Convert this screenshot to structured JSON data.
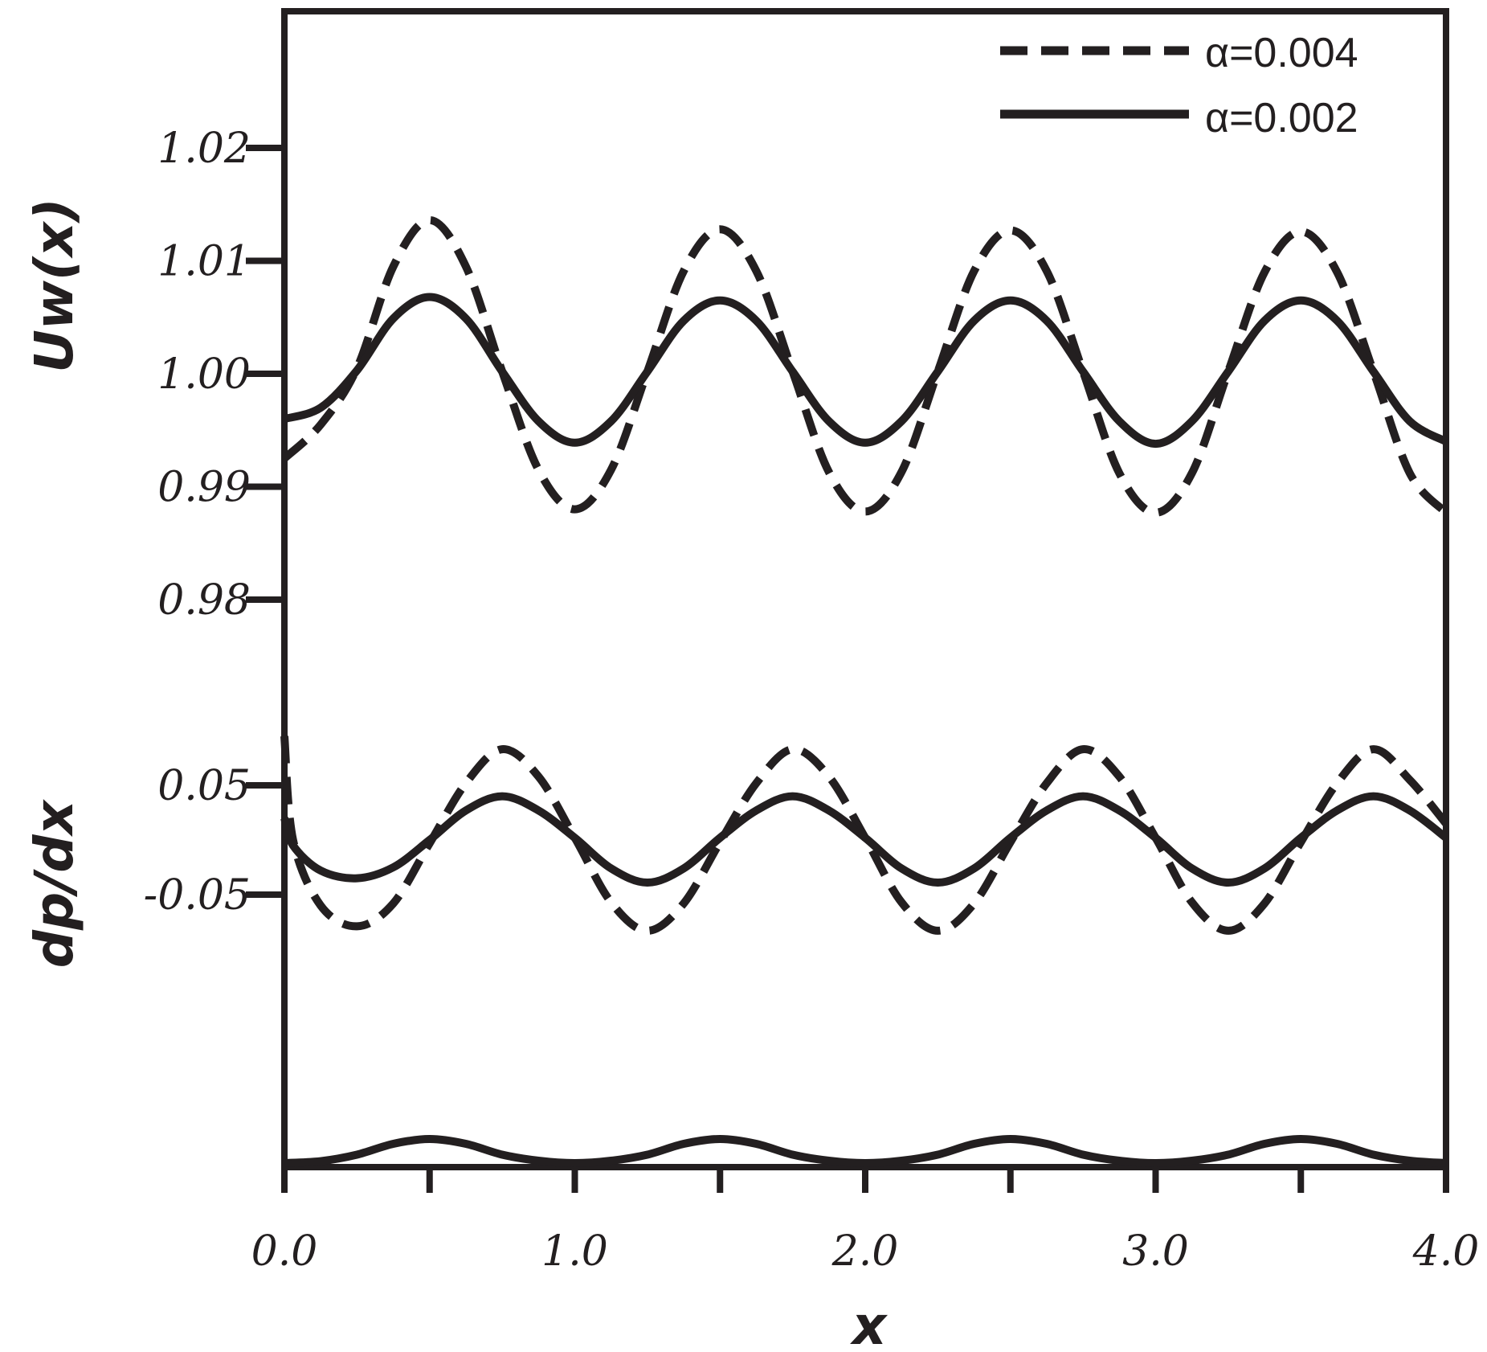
{
  "chart_data": {
    "type": "line",
    "xlabel": "x",
    "xlim": [
      0,
      4
    ],
    "x_ticks": [
      "0.0",
      "1.0",
      "2.0",
      "3.0",
      "4.0"
    ],
    "x_tick_values": [
      0,
      1,
      2,
      3,
      4
    ],
    "x_minor_ticks": [
      0.5,
      1.5,
      2.5,
      3.5
    ],
    "grid": false,
    "legend_position": "top-right",
    "legend": [
      {
        "label": "α=0.004",
        "style": "dashed"
      },
      {
        "label": "α=0.002",
        "style": "solid"
      }
    ],
    "panels": [
      {
        "ylabel": "Uw(x)",
        "y_ticks": [
          "1.02",
          "1.01",
          "1.00",
          "0.99",
          "0.98"
        ],
        "y_tick_values": [
          1.02,
          1.01,
          1.0,
          0.99,
          0.98
        ],
        "series": [
          {
            "legend": "α=0.004",
            "style": "dashed",
            "x": [
              0,
              0.125,
              0.25,
              0.375,
              0.5,
              0.625,
              0.75,
              0.875,
              1.0,
              1.125,
              1.25,
              1.375,
              1.5,
              1.625,
              1.75,
              1.875,
              2.0,
              2.125,
              2.25,
              2.375,
              2.5,
              2.625,
              2.75,
              2.875,
              3.0,
              3.125,
              3.25,
              3.375,
              3.5,
              3.625,
              3.75,
              3.875,
              4.0
            ],
            "y": [
              0.9925,
              0.9955,
              1.0005,
              1.0095,
              1.0136,
              1.0095,
              1.0002,
              0.9915,
              0.988,
              0.9915,
              1.0002,
              1.0091,
              1.0128,
              1.0091,
              1.0002,
              0.9913,
              0.9878,
              0.9913,
              1.0002,
              1.0091,
              1.0127,
              1.0091,
              1.0002,
              0.9912,
              0.9877,
              0.9912,
              1.0002,
              1.009,
              1.0126,
              1.009,
              1.0002,
              0.9912,
              0.9877
            ]
          },
          {
            "legend": "α=0.002",
            "style": "solid",
            "x": [
              0,
              0.125,
              0.25,
              0.375,
              0.5,
              0.625,
              0.75,
              0.875,
              1.0,
              1.125,
              1.25,
              1.375,
              1.5,
              1.625,
              1.75,
              1.875,
              2.0,
              2.125,
              2.25,
              2.375,
              2.5,
              2.625,
              2.75,
              2.875,
              3.0,
              3.125,
              3.25,
              3.375,
              3.5,
              3.625,
              3.75,
              3.875,
              4.0
            ],
            "y": [
              0.996,
              0.997,
              1.0003,
              1.0049,
              1.0068,
              1.0049,
              1.0002,
              0.9958,
              0.9939,
              0.9958,
              1.0002,
              1.0047,
              1.0065,
              1.0047,
              1.0002,
              0.9958,
              0.9939,
              0.9958,
              1.0002,
              1.0047,
              1.0065,
              1.0047,
              1.0002,
              0.9958,
              0.9938,
              0.9958,
              1.0002,
              1.0047,
              1.0065,
              1.0047,
              1.0002,
              0.9958,
              0.994
            ]
          }
        ]
      },
      {
        "ylabel": "dp/dx",
        "y_ticks": [
          "0.05",
          "-0.05"
        ],
        "y_tick_values": [
          0.05,
          -0.05
        ],
        "series": [
          {
            "legend": "α=0.004",
            "style": "dashed",
            "x": [
              0,
              0.03,
              0.125,
              0.25,
              0.375,
              0.5,
              0.625,
              0.75,
              0.875,
              1.0,
              1.125,
              1.25,
              1.375,
              1.5,
              1.625,
              1.75,
              1.875,
              2.0,
              2.125,
              2.25,
              2.375,
              2.5,
              2.625,
              2.75,
              2.875,
              3.0,
              3.125,
              3.25,
              3.375,
              3.5,
              3.625,
              3.75,
              3.875,
              4.0
            ],
            "y": [
              0.095,
              0.0,
              -0.06,
              -0.079,
              -0.058,
              -0.003,
              0.052,
              0.083,
              0.058,
              0.002,
              -0.057,
              -0.083,
              -0.058,
              -0.002,
              0.052,
              0.083,
              0.058,
              0.002,
              -0.057,
              -0.083,
              -0.058,
              -0.002,
              0.052,
              0.083,
              0.058,
              0.002,
              -0.057,
              -0.083,
              -0.058,
              -0.002,
              0.052,
              0.083,
              0.055,
              0.015
            ]
          },
          {
            "legend": "α=0.002",
            "style": "solid",
            "x": [
              0,
              0.03,
              0.125,
              0.25,
              0.375,
              0.5,
              0.625,
              0.75,
              0.875,
              1.0,
              1.125,
              1.25,
              1.375,
              1.5,
              1.625,
              1.75,
              1.875,
              2.0,
              2.125,
              2.25,
              2.375,
              2.5,
              2.625,
              2.75,
              2.875,
              3.0,
              3.125,
              3.25,
              3.375,
              3.5,
              3.625,
              3.75,
              3.875,
              4.0
            ],
            "y": [
              0.02,
              -0.005,
              -0.028,
              -0.035,
              -0.025,
              0.0,
              0.027,
              0.04,
              0.027,
              0.002,
              -0.026,
              -0.039,
              -0.026,
              0.002,
              0.027,
              0.04,
              0.027,
              0.002,
              -0.026,
              -0.039,
              -0.026,
              0.002,
              0.027,
              0.04,
              0.027,
              0.002,
              -0.026,
              -0.039,
              -0.026,
              0.002,
              0.027,
              0.04,
              0.027,
              0.002
            ]
          }
        ]
      },
      {
        "ylabel": "",
        "y_ticks": [],
        "series": [
          {
            "legend": "α=0.002",
            "style": "solid",
            "x": [
              0,
              0.125,
              0.25,
              0.375,
              0.5,
              0.625,
              0.75,
              0.875,
              1.0,
              1.125,
              1.25,
              1.375,
              1.5,
              1.625,
              1.75,
              1.875,
              2.0,
              2.125,
              2.25,
              2.375,
              2.5,
              2.625,
              2.75,
              2.875,
              3.0,
              3.125,
              3.25,
              3.375,
              3.5,
              3.625,
              3.75,
              3.875,
              4.0
            ],
            "y": [
              0.0,
              0.08,
              0.35,
              0.8,
              1.0,
              0.8,
              0.35,
              0.1,
              0.0,
              0.1,
              0.35,
              0.8,
              1.0,
              0.8,
              0.35,
              0.1,
              0.0,
              0.1,
              0.35,
              0.8,
              1.0,
              0.8,
              0.35,
              0.1,
              0.0,
              0.1,
              0.35,
              0.8,
              1.0,
              0.8,
              0.35,
              0.1,
              0.0
            ]
          }
        ]
      }
    ]
  }
}
